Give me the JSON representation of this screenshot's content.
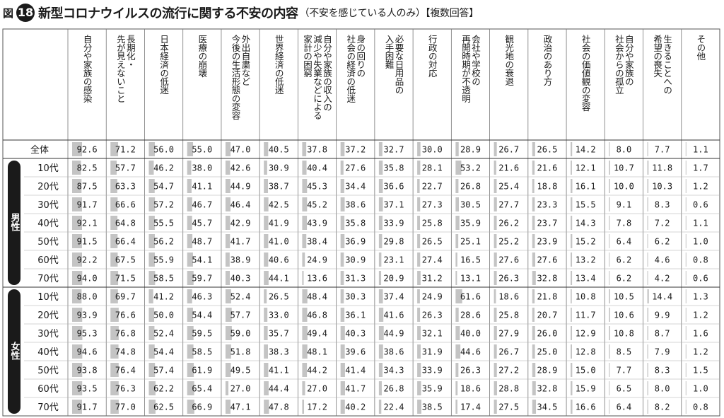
{
  "figure": {
    "prefix": "図",
    "number": "18",
    "title": "新型コロナウイルスの流行に関する不安の内容",
    "note": "（不安を感じている人のみ）【複数回答】"
  },
  "chart_data": {
    "type": "table",
    "title": "新型コロナウイルスの流行に関する不安の内容",
    "columns": [
      [
        "自分や家族の感染"
      ],
      [
        "長期化・",
        "先が見えないこと"
      ],
      [
        "日本経済の低迷"
      ],
      [
        "医療の崩壊"
      ],
      [
        "外出自粛など",
        "今後の生活形態の変容"
      ],
      [
        "世界経済の低迷"
      ],
      [
        "自分や家族の収入の",
        "減少や失業などによる",
        "家計の困窮"
      ],
      [
        "身の回りの",
        "社会の経済の低迷"
      ],
      [
        "必要な日用品の",
        "入手困難"
      ],
      [
        "行政の対応"
      ],
      [
        "会社や学校の",
        "再開時期が不透明"
      ],
      [
        "観光地の衰退"
      ],
      [
        "政治のあり方"
      ],
      [
        "社会の価値観の変容"
      ],
      [
        "自分や家族の",
        "社会からの孤立"
      ],
      [
        "生きることへの",
        "希望の喪失"
      ],
      [
        "その他"
      ]
    ],
    "groups": [
      {
        "label": "",
        "rows": [
          {
            "label": "全体",
            "values": [
              "92.6",
              "71.2",
              "56.0",
              "55.0",
              "47.0",
              "40.5",
              "37.8",
              "37.2",
              "32.7",
              "30.0",
              "28.9",
              "26.7",
              "26.5",
              "14.2",
              "8.0",
              "7.7",
              "1.1"
            ]
          }
        ]
      },
      {
        "label": "男性",
        "rows": [
          {
            "label": "10代",
            "values": [
              "82.5",
              "57.7",
              "46.2",
              "38.0",
              "42.6",
              "30.9",
              "40.4",
              "27.6",
              "35.8",
              "28.1",
              "53.2",
              "21.6",
              "21.6",
              "12.1",
              "10.7",
              "11.8",
              "1.7"
            ]
          },
          {
            "label": "20代",
            "values": [
              "87.5",
              "63.3",
              "54.7",
              "41.1",
              "44.9",
              "38.7",
              "45.3",
              "34.4",
              "36.6",
              "22.7",
              "26.8",
              "25.4",
              "18.8",
              "16.1",
              "10.0",
              "10.3",
              "1.2"
            ]
          },
          {
            "label": "30代",
            "values": [
              "91.7",
              "66.6",
              "57.2",
              "46.7",
              "46.4",
              "42.5",
              "45.2",
              "38.6",
              "37.1",
              "27.3",
              "30.5",
              "27.7",
              "23.3",
              "15.5",
              "9.1",
              "8.3",
              "0.6"
            ]
          },
          {
            "label": "40代",
            "values": [
              "92.1",
              "64.8",
              "55.5",
              "45.7",
              "42.9",
              "41.9",
              "43.9",
              "35.8",
              "33.9",
              "25.8",
              "35.9",
              "26.2",
              "23.7",
              "14.3",
              "7.8",
              "7.2",
              "1.1"
            ]
          },
          {
            "label": "50代",
            "values": [
              "91.5",
              "66.4",
              "56.2",
              "48.7",
              "41.7",
              "41.0",
              "38.4",
              "36.9",
              "29.8",
              "26.5",
              "25.1",
              "25.2",
              "23.9",
              "15.2",
              "6.4",
              "6.2",
              "1.0"
            ]
          },
          {
            "label": "60代",
            "values": [
              "92.2",
              "67.5",
              "55.9",
              "54.1",
              "38.9",
              "40.6",
              "24.9",
              "30.9",
              "23.1",
              "27.4",
              "16.5",
              "27.6",
              "27.6",
              "13.2",
              "6.2",
              "4.6",
              "0.8"
            ]
          },
          {
            "label": "70代",
            "values": [
              "94.0",
              "71.5",
              "58.5",
              "59.7",
              "40.3",
              "44.1",
              "13.6",
              "31.3",
              "20.9",
              "31.2",
              "13.1",
              "26.3",
              "32.8",
              "13.4",
              "6.2",
              "4.2",
              "0.6"
            ]
          }
        ]
      },
      {
        "label": "女性",
        "rows": [
          {
            "label": "10代",
            "values": [
              "88.0",
              "69.7",
              "41.2",
              "46.3",
              "52.4",
              "26.5",
              "48.4",
              "30.3",
              "37.4",
              "24.9",
              "61.6",
              "18.6",
              "21.8",
              "10.8",
              "10.5",
              "14.4",
              "1.3"
            ]
          },
          {
            "label": "20代",
            "values": [
              "93.9",
              "76.6",
              "50.0",
              "54.4",
              "57.7",
              "33.0",
              "46.8",
              "36.1",
              "41.6",
              "26.3",
              "28.6",
              "25.8",
              "20.7",
              "11.7",
              "10.6",
              "9.9",
              "1.2"
            ]
          },
          {
            "label": "30代",
            "values": [
              "95.3",
              "76.8",
              "52.4",
              "59.5",
              "59.0",
              "35.7",
              "49.4",
              "40.3",
              "44.9",
              "32.1",
              "40.0",
              "27.9",
              "26.0",
              "12.9",
              "10.8",
              "8.7",
              "1.6"
            ]
          },
          {
            "label": "40代",
            "values": [
              "94.6",
              "74.8",
              "54.4",
              "58.5",
              "51.8",
              "38.3",
              "48.1",
              "39.6",
              "38.6",
              "31.9",
              "44.6",
              "26.7",
              "25.0",
              "12.8",
              "8.5",
              "7.9",
              "1.2"
            ]
          },
          {
            "label": "50代",
            "values": [
              "93.8",
              "76.4",
              "57.4",
              "61.9",
              "49.5",
              "41.1",
              "44.2",
              "41.4",
              "34.3",
              "33.9",
              "26.3",
              "27.2",
              "28.9",
              "15.0",
              "7.7",
              "8.3",
              "1.5"
            ]
          },
          {
            "label": "60代",
            "values": [
              "93.5",
              "76.3",
              "62.2",
              "65.4",
              "27.0",
              "44.4",
              "27.0",
              "41.7",
              "26.8",
              "35.9",
              "18.6",
              "28.8",
              "32.8",
              "15.9",
              "6.5",
              "8.0",
              "1.0"
            ]
          },
          {
            "label": "70代",
            "values": [
              "91.7",
              "77.0",
              "62.5",
              "66.9",
              "47.1",
              "47.8",
              "17.2",
              "40.2",
              "22.4",
              "38.5",
              "17.4",
              "27.5",
              "34.5",
              "16.6",
              "6.4",
              "8.2",
              "0.8"
            ]
          }
        ]
      }
    ],
    "bar_color": "#c4c4c4",
    "value_max": 100
  }
}
